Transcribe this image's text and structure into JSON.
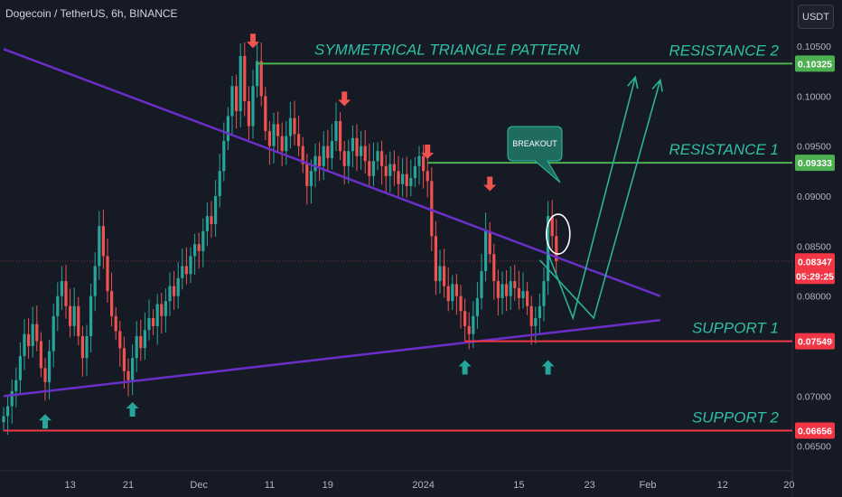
{
  "header": {
    "symbol_title": "Dogecoin / TetherUS, 6h, BINANCE",
    "currency_button": "USDT"
  },
  "colors": {
    "background": "#161a25",
    "bull": "#26a69a",
    "bear": "#ef5350",
    "trendline": "#6a2fc7",
    "resistance": "#4caf50",
    "support": "#f23645",
    "annotation_text": "#2fbfa4",
    "projection": "#2ab29a"
  },
  "icons": [
    "arrow-down-icon",
    "arrow-up-icon",
    "breakout-callout-icon"
  ],
  "chart_data": {
    "type": "candlestick",
    "title": "Dogecoin / TetherUS, 6h, BINANCE",
    "x_tick_labels": [
      "13",
      "21",
      "Dec",
      "11",
      "19",
      "2024",
      "15",
      "23",
      "Feb",
      "12",
      "20"
    ],
    "y_tick_labels": [
      "0.10500",
      "0.10000",
      "0.09500",
      "0.09000",
      "0.08500",
      "0.08000",
      "0.07000",
      "0.06500"
    ],
    "ylim": [
      0.0638,
      0.1078
    ],
    "grid": false,
    "price_labels": [
      {
        "value": "0.10325",
        "kind": "resistance"
      },
      {
        "value": "0.09333",
        "kind": "resistance"
      },
      {
        "value": "0.08347",
        "kind": "current"
      },
      {
        "value": "05:29:25",
        "kind": "countdown"
      },
      {
        "value": "0.07549",
        "kind": "support"
      },
      {
        "value": "0.06656",
        "kind": "support"
      }
    ],
    "levels": [
      {
        "label": "RESISTANCE 2",
        "value": 0.10325
      },
      {
        "label": "RESISTANCE 1",
        "value": 0.09333
      },
      {
        "label": "SUPPORT 1",
        "value": 0.07549
      },
      {
        "label": "SUPPORT 2",
        "value": 0.06656
      }
    ],
    "annotations": {
      "pattern_title": "SYMMETRICAL TRIANGLE PATTERN",
      "breakout_label": "BREAKOUT"
    },
    "trendlines": [
      {
        "name": "upper",
        "start": [
          0,
          0.1047
        ],
        "end": [
          158,
          0.08
        ]
      },
      {
        "name": "lower",
        "start": [
          0,
          0.07
        ],
        "end": [
          158,
          0.0776
        ]
      }
    ],
    "projections": [
      {
        "points": [
          [
            131,
            0.0843
          ],
          [
            137,
            0.0778
          ],
          [
            152,
            0.1019
          ]
        ]
      },
      {
        "points": [
          [
            129,
            0.0836
          ],
          [
            142,
            0.0778
          ],
          [
            158,
            0.1016
          ]
        ]
      }
    ],
    "down_markers": [
      [
        60,
        0.1048
      ],
      [
        82,
        0.099
      ],
      [
        102,
        0.0937
      ],
      [
        117,
        0.0905
      ]
    ],
    "up_markers": [
      [
        10,
        0.0682
      ],
      [
        31,
        0.0694
      ],
      [
        111,
        0.0736
      ],
      [
        131,
        0.0736
      ]
    ],
    "highlight_circle": [
      133,
      0.0862
    ],
    "candles": [
      [
        0.0674,
        0.068
      ],
      [
        0.068,
        0.069
      ],
      [
        0.069,
        0.0705
      ],
      [
        0.0705,
        0.0716
      ],
      [
        0.0716,
        0.074
      ],
      [
        0.074,
        0.0762
      ],
      [
        0.0762,
        0.075
      ],
      [
        0.075,
        0.0772
      ],
      [
        0.0772,
        0.0755
      ],
      [
        0.0755,
        0.0728
      ],
      [
        0.0728,
        0.0714
      ],
      [
        0.0714,
        0.0745
      ],
      [
        0.0745,
        0.078
      ],
      [
        0.078,
        0.08
      ],
      [
        0.08,
        0.0815
      ],
      [
        0.0815,
        0.079
      ],
      [
        0.079,
        0.077
      ],
      [
        0.077,
        0.079
      ],
      [
        0.079,
        0.076
      ],
      [
        0.076,
        0.0738
      ],
      [
        0.0738,
        0.076
      ],
      [
        0.076,
        0.08
      ],
      [
        0.08,
        0.083
      ],
      [
        0.083,
        0.087
      ],
      [
        0.087,
        0.084
      ],
      [
        0.084,
        0.0805
      ],
      [
        0.0805,
        0.078
      ],
      [
        0.078,
        0.0765
      ],
      [
        0.0765,
        0.0748
      ],
      [
        0.0748,
        0.0725
      ],
      [
        0.0725,
        0.0716
      ],
      [
        0.0716,
        0.0738
      ],
      [
        0.0738,
        0.076
      ],
      [
        0.076,
        0.0748
      ],
      [
        0.0748,
        0.0766
      ],
      [
        0.0766,
        0.0778
      ],
      [
        0.0778,
        0.077
      ],
      [
        0.077,
        0.0792
      ],
      [
        0.0792,
        0.078
      ],
      [
        0.078,
        0.0795
      ],
      [
        0.0795,
        0.081
      ],
      [
        0.081,
        0.08
      ],
      [
        0.08,
        0.0818
      ],
      [
        0.0818,
        0.083
      ],
      [
        0.083,
        0.0822
      ],
      [
        0.0822,
        0.084
      ],
      [
        0.084,
        0.0852
      ],
      [
        0.0852,
        0.0845
      ],
      [
        0.0845,
        0.0865
      ],
      [
        0.0865,
        0.088
      ],
      [
        0.088,
        0.0872
      ],
      [
        0.0872,
        0.09
      ],
      [
        0.09,
        0.0925
      ],
      [
        0.0925,
        0.0955
      ],
      [
        0.0955,
        0.098
      ],
      [
        0.098,
        0.101
      ],
      [
        0.101,
        0.0985
      ],
      [
        0.0985,
        0.104
      ],
      [
        0.104,
        0.0995
      ],
      [
        0.0995,
        0.097
      ],
      [
        0.097,
        0.101
      ],
      [
        0.101,
        0.1035
      ],
      [
        0.1035,
        0.1
      ],
      [
        0.1,
        0.0965
      ],
      [
        0.0965,
        0.095
      ],
      [
        0.095,
        0.0972
      ],
      [
        0.0972,
        0.096
      ],
      [
        0.096,
        0.0945
      ],
      [
        0.0945,
        0.096
      ],
      [
        0.096,
        0.0978
      ],
      [
        0.0978,
        0.0962
      ],
      [
        0.0962,
        0.095
      ],
      [
        0.095,
        0.0932
      ],
      [
        0.0932,
        0.091
      ],
      [
        0.091,
        0.0925
      ],
      [
        0.0925,
        0.094
      ],
      [
        0.094,
        0.093
      ],
      [
        0.093,
        0.095
      ],
      [
        0.095,
        0.0938
      ],
      [
        0.0938,
        0.0955
      ],
      [
        0.0955,
        0.0975
      ],
      [
        0.0975,
        0.0945
      ],
      [
        0.0945,
        0.093
      ],
      [
        0.093,
        0.0945
      ],
      [
        0.0945,
        0.0958
      ],
      [
        0.0958,
        0.094
      ],
      [
        0.094,
        0.095
      ],
      [
        0.095,
        0.0935
      ],
      [
        0.0935,
        0.092
      ],
      [
        0.092,
        0.0935
      ],
      [
        0.0935,
        0.0945
      ],
      [
        0.0945,
        0.093
      ],
      [
        0.093,
        0.092
      ],
      [
        0.092,
        0.0932
      ],
      [
        0.0932,
        0.0925
      ],
      [
        0.0925,
        0.0912
      ],
      [
        0.0912,
        0.0922
      ],
      [
        0.0922,
        0.091
      ],
      [
        0.091,
        0.0918
      ],
      [
        0.0918,
        0.093
      ],
      [
        0.093,
        0.094
      ],
      [
        0.094,
        0.0925
      ],
      [
        0.0925,
        0.0915
      ],
      [
        0.0915,
        0.086
      ],
      [
        0.086,
        0.0815
      ],
      [
        0.0815,
        0.083
      ],
      [
        0.083,
        0.081
      ],
      [
        0.081,
        0.0795
      ],
      [
        0.0795,
        0.0812
      ],
      [
        0.0812,
        0.08
      ],
      [
        0.08,
        0.0785
      ],
      [
        0.0785,
        0.077
      ],
      [
        0.077,
        0.0762
      ],
      [
        0.0762,
        0.078
      ],
      [
        0.078,
        0.0798
      ],
      [
        0.0798,
        0.0825
      ],
      [
        0.0825,
        0.0865
      ],
      [
        0.0865,
        0.0842
      ],
      [
        0.0842,
        0.0815
      ],
      [
        0.0815,
        0.0798
      ],
      [
        0.0798,
        0.0812
      ],
      [
        0.0812,
        0.08
      ],
      [
        0.08,
        0.0815
      ],
      [
        0.0815,
        0.0808
      ],
      [
        0.0808,
        0.0798
      ],
      [
        0.0798,
        0.0805
      ],
      [
        0.0805,
        0.079
      ],
      [
        0.079,
        0.077
      ],
      [
        0.077,
        0.0778
      ],
      [
        0.0778,
        0.079
      ],
      [
        0.079,
        0.0815
      ],
      [
        0.0815,
        0.088
      ],
      [
        0.088,
        0.086
      ],
      [
        0.086,
        0.0835
      ]
    ]
  }
}
